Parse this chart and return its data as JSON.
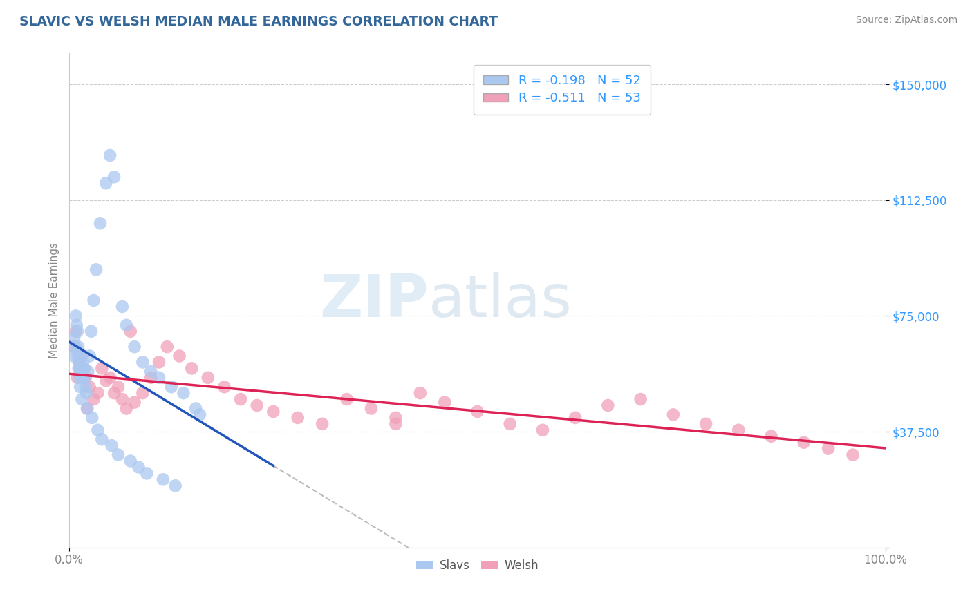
{
  "title": "SLAVIC VS WELSH MEDIAN MALE EARNINGS CORRELATION CHART",
  "source": "Source: ZipAtlas.com",
  "ylabel": "Median Male Earnings",
  "xlim": [
    0.0,
    100.0
  ],
  "ylim": [
    0,
    160000
  ],
  "yticks": [
    0,
    37500,
    75000,
    112500,
    150000
  ],
  "ytick_labels": [
    "",
    "$37,500",
    "$75,000",
    "$112,500",
    "$150,000"
  ],
  "xtick_labels": [
    "0.0%",
    "100.0%"
  ],
  "grid_color": "#cccccc",
  "background_color": "#ffffff",
  "slavs_color": "#aac8f0",
  "slavs_line_color": "#2255bb",
  "welsh_color": "#f0a0b8",
  "welsh_line_color": "#dd2255",
  "dashed_color": "#bbbbbb",
  "slavs_R": -0.198,
  "slavs_N": 52,
  "welsh_R": -0.511,
  "welsh_N": 53,
  "slavs_scatter_x": [
    0.5,
    0.6,
    0.8,
    0.9,
    1.0,
    1.1,
    1.2,
    1.3,
    1.4,
    1.5,
    1.6,
    1.7,
    1.8,
    1.9,
    2.0,
    2.1,
    2.3,
    2.5,
    2.7,
    3.0,
    3.3,
    3.8,
    4.5,
    5.0,
    5.5,
    6.5,
    7.0,
    8.0,
    9.0,
    10.0,
    11.0,
    12.5,
    14.0,
    15.5,
    16.0,
    0.7,
    1.05,
    1.15,
    1.25,
    1.35,
    1.55,
    2.2,
    2.8,
    3.5,
    4.0,
    5.2,
    6.0,
    7.5,
    8.5,
    9.5,
    11.5,
    13.0
  ],
  "slavs_scatter_y": [
    62000,
    68000,
    75000,
    72000,
    70000,
    65000,
    63000,
    60000,
    58000,
    57000,
    55000,
    60000,
    58000,
    55000,
    52000,
    50000,
    57000,
    62000,
    70000,
    80000,
    90000,
    105000,
    118000,
    127000,
    120000,
    78000,
    72000,
    65000,
    60000,
    57000,
    55000,
    52000,
    50000,
    45000,
    43000,
    65000,
    62000,
    58000,
    55000,
    52000,
    48000,
    45000,
    42000,
    38000,
    35000,
    33000,
    30000,
    28000,
    26000,
    24000,
    22000,
    20000
  ],
  "welsh_scatter_x": [
    0.5,
    0.8,
    1.0,
    1.2,
    1.5,
    1.8,
    2.0,
    2.5,
    3.0,
    3.5,
    4.0,
    4.5,
    5.0,
    5.5,
    6.0,
    6.5,
    7.0,
    8.0,
    9.0,
    10.0,
    11.0,
    12.0,
    13.5,
    15.0,
    17.0,
    19.0,
    21.0,
    23.0,
    25.0,
    28.0,
    31.0,
    34.0,
    37.0,
    40.0,
    43.0,
    46.0,
    50.0,
    54.0,
    58.0,
    62.0,
    66.0,
    70.0,
    74.0,
    78.0,
    82.0,
    86.0,
    90.0,
    93.0,
    96.0,
    1.3,
    2.2,
    7.5,
    40.0
  ],
  "welsh_scatter_y": [
    65000,
    70000,
    55000,
    60000,
    62000,
    58000,
    55000,
    52000,
    48000,
    50000,
    58000,
    54000,
    55000,
    50000,
    52000,
    48000,
    45000,
    47000,
    50000,
    55000,
    60000,
    65000,
    62000,
    58000,
    55000,
    52000,
    48000,
    46000,
    44000,
    42000,
    40000,
    48000,
    45000,
    42000,
    50000,
    47000,
    44000,
    40000,
    38000,
    42000,
    46000,
    48000,
    43000,
    40000,
    38000,
    36000,
    34000,
    32000,
    30000,
    58000,
    45000,
    70000,
    40000
  ],
  "watermark_zip": "ZIP",
  "watermark_atlas": "atlas",
  "title_color": "#336699",
  "axis_label_color": "#888888",
  "tick_label_color_y": "#3399ff",
  "tick_label_color_x": "#888888",
  "source_color": "#888888",
  "legend_text_color": "#3399ff"
}
